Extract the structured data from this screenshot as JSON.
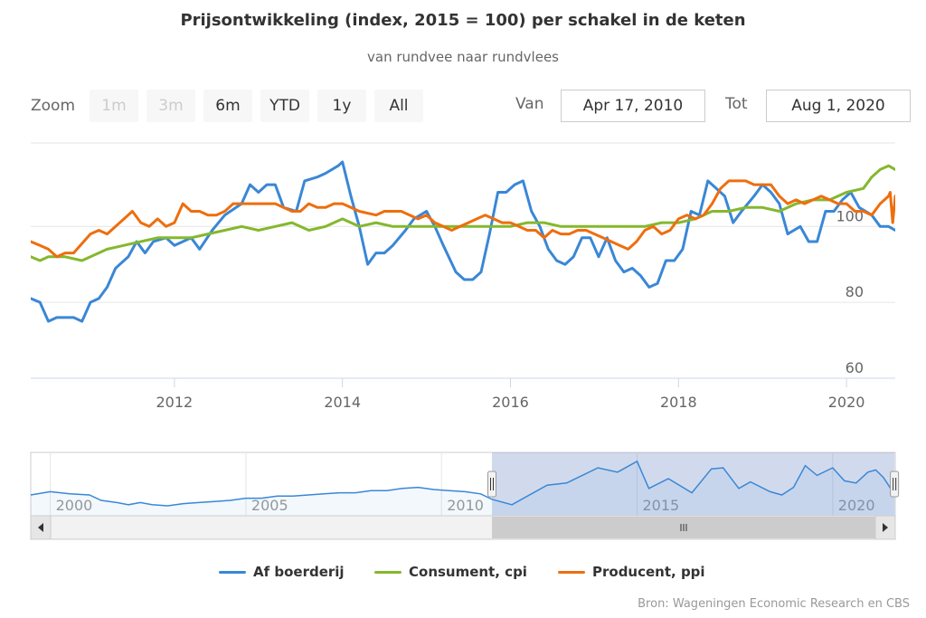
{
  "title": "Prijsontwikkeling (index, 2015 = 100) per schakel in de keten",
  "subtitle": "van rundvee naar rundvlees",
  "range_selector": {
    "zoom_label": "Zoom",
    "buttons": [
      {
        "label": "1m",
        "enabled": false
      },
      {
        "label": "3m",
        "enabled": false
      },
      {
        "label": "6m",
        "enabled": true
      },
      {
        "label": "YTD",
        "enabled": true
      },
      {
        "label": "1y",
        "enabled": true
      },
      {
        "label": "All",
        "enabled": true
      }
    ],
    "from_label": "Van",
    "from_value": "Apr 17, 2010",
    "to_label": "Tot",
    "to_value": "Aug 1, 2020"
  },
  "chart_data": {
    "type": "line",
    "x_axis": {
      "type": "datetime",
      "min": 2010.29,
      "max": 2020.58,
      "ticks": [
        2012,
        2014,
        2016,
        2018,
        2020
      ]
    },
    "y_axis": {
      "min": 60,
      "max": 122,
      "ticks": [
        60,
        80,
        100
      ],
      "position": "right",
      "grid": true
    },
    "series": [
      {
        "name": "Af boerderij",
        "color": "#3a87d6",
        "points": [
          [
            2010.29,
            81
          ],
          [
            2010.4,
            80
          ],
          [
            2010.5,
            75
          ],
          [
            2010.6,
            76
          ],
          [
            2010.8,
            76
          ],
          [
            2010.9,
            75
          ],
          [
            2011.0,
            80
          ],
          [
            2011.1,
            81
          ],
          [
            2011.2,
            84
          ],
          [
            2011.3,
            89
          ],
          [
            2011.45,
            92
          ],
          [
            2011.55,
            96
          ],
          [
            2011.65,
            93
          ],
          [
            2011.75,
            96
          ],
          [
            2011.9,
            97
          ],
          [
            2012.0,
            95
          ],
          [
            2012.1,
            96
          ],
          [
            2012.2,
            97
          ],
          [
            2012.3,
            94
          ],
          [
            2012.45,
            99
          ],
          [
            2012.6,
            103
          ],
          [
            2012.8,
            106
          ],
          [
            2012.9,
            111
          ],
          [
            2013.0,
            109
          ],
          [
            2013.1,
            111
          ],
          [
            2013.2,
            111
          ],
          [
            2013.3,
            105
          ],
          [
            2013.45,
            104
          ],
          [
            2013.55,
            112
          ],
          [
            2013.7,
            113
          ],
          [
            2013.8,
            114
          ],
          [
            2013.95,
            116
          ],
          [
            2014.0,
            117
          ],
          [
            2014.1,
            108
          ],
          [
            2014.2,
            100
          ],
          [
            2014.3,
            90
          ],
          [
            2014.4,
            93
          ],
          [
            2014.5,
            93
          ],
          [
            2014.6,
            95
          ],
          [
            2014.75,
            99
          ],
          [
            2014.85,
            102
          ],
          [
            2015.0,
            104
          ],
          [
            2015.1,
            100
          ],
          [
            2015.2,
            95
          ],
          [
            2015.35,
            88
          ],
          [
            2015.45,
            86
          ],
          [
            2015.55,
            86
          ],
          [
            2015.65,
            88
          ],
          [
            2015.75,
            98
          ],
          [
            2015.85,
            109
          ],
          [
            2015.95,
            109
          ],
          [
            2016.05,
            111
          ],
          [
            2016.15,
            112
          ],
          [
            2016.25,
            104
          ],
          [
            2016.35,
            100
          ],
          [
            2016.45,
            94
          ],
          [
            2016.55,
            91
          ],
          [
            2016.65,
            90
          ],
          [
            2016.75,
            92
          ],
          [
            2016.85,
            97
          ],
          [
            2016.95,
            97
          ],
          [
            2017.05,
            92
          ],
          [
            2017.15,
            97
          ],
          [
            2017.25,
            91
          ],
          [
            2017.35,
            88
          ],
          [
            2017.45,
            89
          ],
          [
            2017.55,
            87
          ],
          [
            2017.65,
            84
          ],
          [
            2017.75,
            85
          ],
          [
            2017.85,
            91
          ],
          [
            2017.95,
            91
          ],
          [
            2018.05,
            94
          ],
          [
            2018.15,
            104
          ],
          [
            2018.25,
            103
          ],
          [
            2018.35,
            112
          ],
          [
            2018.45,
            110
          ],
          [
            2018.55,
            108
          ],
          [
            2018.65,
            101
          ],
          [
            2018.75,
            104
          ],
          [
            2018.9,
            108
          ],
          [
            2019.0,
            111
          ],
          [
            2019.1,
            109
          ],
          [
            2019.2,
            106
          ],
          [
            2019.3,
            98
          ],
          [
            2019.45,
            100
          ],
          [
            2019.55,
            96
          ],
          [
            2019.65,
            96
          ],
          [
            2019.75,
            104
          ],
          [
            2019.85,
            104
          ],
          [
            2019.95,
            107
          ],
          [
            2020.05,
            109
          ],
          [
            2020.15,
            105
          ],
          [
            2020.3,
            103
          ],
          [
            2020.4,
            100
          ],
          [
            2020.5,
            100
          ],
          [
            2020.58,
            99
          ]
        ]
      },
      {
        "name": "Consument, cpi",
        "color": "#84b82d",
        "points": [
          [
            2010.29,
            92
          ],
          [
            2010.4,
            91
          ],
          [
            2010.5,
            92
          ],
          [
            2010.7,
            92
          ],
          [
            2010.9,
            91
          ],
          [
            2011.0,
            92
          ],
          [
            2011.2,
            94
          ],
          [
            2011.4,
            95
          ],
          [
            2011.6,
            96
          ],
          [
            2011.8,
            97
          ],
          [
            2012.0,
            97
          ],
          [
            2012.2,
            97
          ],
          [
            2012.4,
            98
          ],
          [
            2012.6,
            99
          ],
          [
            2012.8,
            100
          ],
          [
            2013.0,
            99
          ],
          [
            2013.2,
            100
          ],
          [
            2013.4,
            101
          ],
          [
            2013.6,
            99
          ],
          [
            2013.8,
            100
          ],
          [
            2014.0,
            102
          ],
          [
            2014.2,
            100
          ],
          [
            2014.4,
            101
          ],
          [
            2014.6,
            100
          ],
          [
            2014.8,
            100
          ],
          [
            2015.0,
            100
          ],
          [
            2015.2,
            100
          ],
          [
            2015.4,
            100
          ],
          [
            2015.6,
            100
          ],
          [
            2015.8,
            100
          ],
          [
            2016.0,
            100
          ],
          [
            2016.2,
            101
          ],
          [
            2016.4,
            101
          ],
          [
            2016.6,
            100
          ],
          [
            2016.8,
            100
          ],
          [
            2017.0,
            100
          ],
          [
            2017.2,
            100
          ],
          [
            2017.4,
            100
          ],
          [
            2017.6,
            100
          ],
          [
            2017.8,
            101
          ],
          [
            2018.0,
            101
          ],
          [
            2018.2,
            102
          ],
          [
            2018.4,
            104
          ],
          [
            2018.6,
            104
          ],
          [
            2018.8,
            105
          ],
          [
            2019.0,
            105
          ],
          [
            2019.2,
            104
          ],
          [
            2019.4,
            106
          ],
          [
            2019.6,
            107
          ],
          [
            2019.8,
            107
          ],
          [
            2020.0,
            109
          ],
          [
            2020.2,
            110
          ],
          [
            2020.3,
            113
          ],
          [
            2020.4,
            115
          ],
          [
            2020.5,
            116
          ],
          [
            2020.58,
            115
          ]
        ]
      },
      {
        "name": "Producent, ppi",
        "color": "#ee6e0e",
        "points": [
          [
            2010.29,
            96
          ],
          [
            2010.4,
            95
          ],
          [
            2010.5,
            94
          ],
          [
            2010.6,
            92
          ],
          [
            2010.7,
            93
          ],
          [
            2010.8,
            93
          ],
          [
            2011.0,
            98
          ],
          [
            2011.1,
            99
          ],
          [
            2011.2,
            98
          ],
          [
            2011.3,
            100
          ],
          [
            2011.4,
            102
          ],
          [
            2011.5,
            104
          ],
          [
            2011.6,
            101
          ],
          [
            2011.7,
            100
          ],
          [
            2011.8,
            102
          ],
          [
            2011.9,
            100
          ],
          [
            2012.0,
            101
          ],
          [
            2012.1,
            106
          ],
          [
            2012.2,
            104
          ],
          [
            2012.3,
            104
          ],
          [
            2012.4,
            103
          ],
          [
            2012.5,
            103
          ],
          [
            2012.6,
            104
          ],
          [
            2012.7,
            106
          ],
          [
            2012.8,
            106
          ],
          [
            2012.9,
            106
          ],
          [
            2013.0,
            106
          ],
          [
            2013.2,
            106
          ],
          [
            2013.4,
            104
          ],
          [
            2013.5,
            104
          ],
          [
            2013.6,
            106
          ],
          [
            2013.7,
            105
          ],
          [
            2013.8,
            105
          ],
          [
            2013.9,
            106
          ],
          [
            2014.0,
            106
          ],
          [
            2014.1,
            105
          ],
          [
            2014.2,
            104
          ],
          [
            2014.4,
            103
          ],
          [
            2014.5,
            104
          ],
          [
            2014.6,
            104
          ],
          [
            2014.7,
            104
          ],
          [
            2014.8,
            103
          ],
          [
            2014.9,
            102
          ],
          [
            2015.0,
            103
          ],
          [
            2015.1,
            101
          ],
          [
            2015.2,
            100
          ],
          [
            2015.3,
            99
          ],
          [
            2015.4,
            100
          ],
          [
            2015.5,
            101
          ],
          [
            2015.6,
            102
          ],
          [
            2015.7,
            103
          ],
          [
            2015.8,
            102
          ],
          [
            2015.9,
            101
          ],
          [
            2016.0,
            101
          ],
          [
            2016.1,
            100
          ],
          [
            2016.2,
            99
          ],
          [
            2016.3,
            99
          ],
          [
            2016.4,
            97
          ],
          [
            2016.5,
            99
          ],
          [
            2016.6,
            98
          ],
          [
            2016.7,
            98
          ],
          [
            2016.8,
            99
          ],
          [
            2016.9,
            99
          ],
          [
            2017.0,
            98
          ],
          [
            2017.1,
            97
          ],
          [
            2017.2,
            96
          ],
          [
            2017.3,
            95
          ],
          [
            2017.4,
            94
          ],
          [
            2017.5,
            96
          ],
          [
            2017.6,
            99
          ],
          [
            2017.7,
            100
          ],
          [
            2017.8,
            98
          ],
          [
            2017.9,
            99
          ],
          [
            2018.0,
            102
          ],
          [
            2018.1,
            103
          ],
          [
            2018.2,
            102
          ],
          [
            2018.3,
            103
          ],
          [
            2018.4,
            106
          ],
          [
            2018.5,
            110
          ],
          [
            2018.6,
            112
          ],
          [
            2018.7,
            112
          ],
          [
            2018.8,
            112
          ],
          [
            2018.9,
            111
          ],
          [
            2019.0,
            111
          ],
          [
            2019.1,
            111
          ],
          [
            2019.2,
            108
          ],
          [
            2019.3,
            106
          ],
          [
            2019.4,
            107
          ],
          [
            2019.5,
            106
          ],
          [
            2019.6,
            107
          ],
          [
            2019.7,
            108
          ],
          [
            2019.8,
            107
          ],
          [
            2019.9,
            106
          ],
          [
            2020.0,
            106
          ],
          [
            2020.1,
            104
          ],
          [
            2020.2,
            104
          ],
          [
            2020.3,
            103
          ],
          [
            2020.4,
            106
          ],
          [
            2020.5,
            108
          ],
          [
            2020.52,
            109
          ],
          [
            2020.55,
            101
          ],
          [
            2020.58,
            108
          ]
        ]
      }
    ],
    "legend": {
      "placement": "bottom"
    },
    "credit": "Bron: Wageningen Economic Research en CBS"
  },
  "navigator": {
    "x_ticks": [
      "2000",
      "2005",
      "2010",
      "2015",
      "2020"
    ],
    "range_start": 1998.5,
    "range_end": 2020.6,
    "selected_start": 2010.29,
    "selected_end": 2020.58,
    "values": [
      [
        1998.5,
        85
      ],
      [
        1999,
        88
      ],
      [
        1999.5,
        86
      ],
      [
        2000,
        85
      ],
      [
        2000.3,
        80
      ],
      [
        2000.7,
        78
      ],
      [
        2001,
        76
      ],
      [
        2001.3,
        78
      ],
      [
        2001.6,
        76
      ],
      [
        2002,
        75
      ],
      [
        2002.4,
        77
      ],
      [
        2002.8,
        78
      ],
      [
        2003.2,
        79
      ],
      [
        2003.6,
        80
      ],
      [
        2004,
        82
      ],
      [
        2004.4,
        82
      ],
      [
        2004.8,
        84
      ],
      [
        2005.2,
        84
      ],
      [
        2005.6,
        85
      ],
      [
        2006,
        86
      ],
      [
        2006.4,
        87
      ],
      [
        2006.8,
        87
      ],
      [
        2007.2,
        89
      ],
      [
        2007.6,
        89
      ],
      [
        2008,
        91
      ],
      [
        2008.4,
        92
      ],
      [
        2008.8,
        90
      ],
      [
        2009.2,
        89
      ],
      [
        2009.6,
        88
      ],
      [
        2010,
        86
      ],
      [
        2010.29,
        81
      ],
      [
        2010.8,
        76
      ],
      [
        2011.2,
        84
      ],
      [
        2011.7,
        94
      ],
      [
        2012.2,
        96
      ],
      [
        2012.6,
        103
      ],
      [
        2013,
        110
      ],
      [
        2013.5,
        106
      ],
      [
        2014,
        116
      ],
      [
        2014.3,
        91
      ],
      [
        2014.8,
        100
      ],
      [
        2015.4,
        87
      ],
      [
        2015.9,
        109
      ],
      [
        2016.2,
        110
      ],
      [
        2016.6,
        91
      ],
      [
        2016.9,
        97
      ],
      [
        2017.4,
        88
      ],
      [
        2017.7,
        85
      ],
      [
        2018,
        92
      ],
      [
        2018.3,
        112
      ],
      [
        2018.6,
        103
      ],
      [
        2019,
        110
      ],
      [
        2019.3,
        98
      ],
      [
        2019.6,
        96
      ],
      [
        2019.9,
        106
      ],
      [
        2020.1,
        108
      ],
      [
        2020.3,
        101
      ],
      [
        2020.5,
        90
      ],
      [
        2020.6,
        99
      ]
    ]
  }
}
